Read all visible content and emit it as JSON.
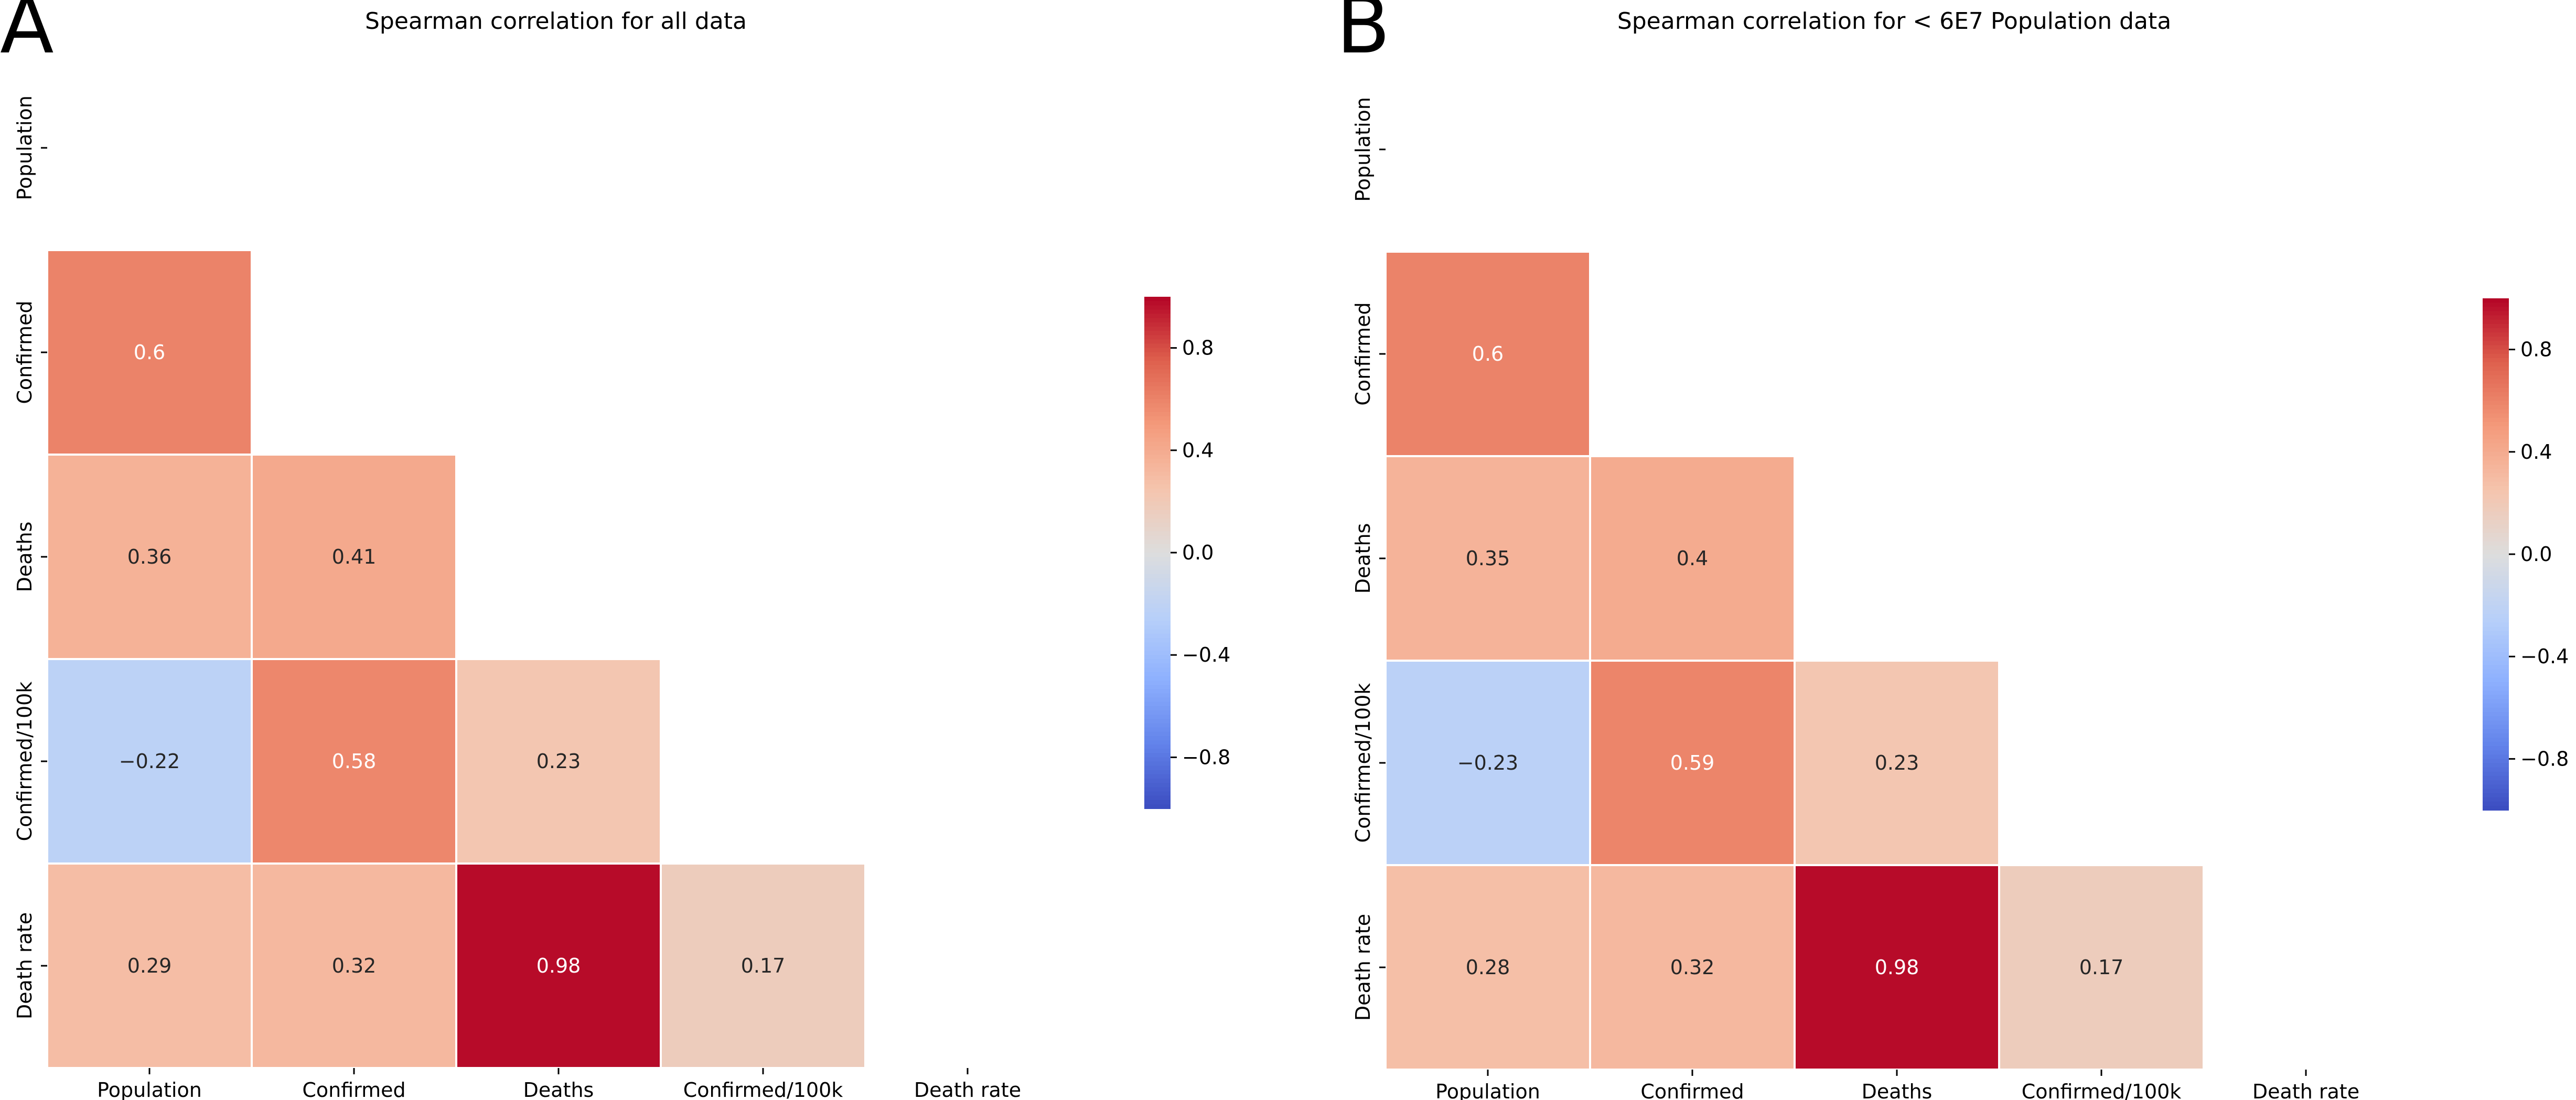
{
  "chart_data": [
    {
      "type": "heatmap",
      "panel_label": "A",
      "title": "Spearman correlation for all data",
      "x_labels": [
        "Population",
        "Confirmed",
        "Deaths",
        "Confirmed/100k",
        "Death rate"
      ],
      "y_labels": [
        "Population",
        "Confirmed",
        "Deaths",
        "Confirmed/100k",
        "Death rate"
      ],
      "mask": "upper-triangle-and-diagonal",
      "values": [
        [
          null,
          null,
          null,
          null,
          null
        ],
        [
          0.6,
          null,
          null,
          null,
          null
        ],
        [
          0.36,
          0.41,
          null,
          null,
          null
        ],
        [
          -0.22,
          0.58,
          0.23,
          null,
          null
        ],
        [
          0.29,
          0.32,
          0.98,
          0.17,
          null
        ]
      ],
      "colormap": "coolwarm",
      "vmin": -1,
      "vmax": 1,
      "colorbar_ticks": [
        0.8,
        0.4,
        0.0,
        -0.4,
        -0.8
      ],
      "colorbar_tick_labels": [
        "0.8",
        "0.4",
        "0.0",
        "−0.4",
        "−0.8"
      ]
    },
    {
      "type": "heatmap",
      "panel_label": "B",
      "title": "Spearman correlation for < 6E7 Population data",
      "x_labels": [
        "Population",
        "Confirmed",
        "Deaths",
        "Confirmed/100k",
        "Death rate"
      ],
      "y_labels": [
        "Population",
        "Confirmed",
        "Deaths",
        "Confirmed/100k",
        "Death rate"
      ],
      "mask": "upper-triangle-and-diagonal",
      "values": [
        [
          null,
          null,
          null,
          null,
          null
        ],
        [
          0.6,
          null,
          null,
          null,
          null
        ],
        [
          0.35,
          0.4,
          null,
          null,
          null
        ],
        [
          -0.23,
          0.59,
          0.23,
          null,
          null
        ],
        [
          0.28,
          0.32,
          0.98,
          0.17,
          null
        ]
      ],
      "colormap": "coolwarm",
      "vmin": -1,
      "vmax": 1,
      "colorbar_ticks": [
        0.8,
        0.4,
        0.0,
        -0.4,
        -0.8
      ],
      "colorbar_tick_labels": [
        "0.8",
        "0.4",
        "0.0",
        "−0.4",
        "−0.8"
      ]
    }
  ]
}
